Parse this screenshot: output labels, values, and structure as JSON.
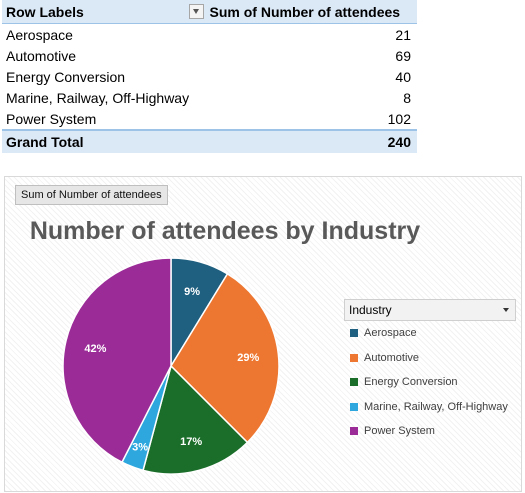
{
  "pivot": {
    "header_row_labels": "Row Labels",
    "header_values": "Sum of Number of attendees",
    "rows": [
      {
        "label": "Aerospace",
        "value": "21"
      },
      {
        "label": "Automotive",
        "value": "69"
      },
      {
        "label": "Energy Conversion",
        "value": "40"
      },
      {
        "label": "Marine, Railway, Off-Highway",
        "value": "8"
      },
      {
        "label": "Power System",
        "value": "102"
      }
    ],
    "total_label": "Grand Total",
    "total_value": "240"
  },
  "chart": {
    "field_button": "Sum of Number of attendees",
    "legend_field": "Industry"
  },
  "chart_data": {
    "type": "pie",
    "title": "Number of attendees by Industry",
    "categories": [
      "Aerospace",
      "Automotive",
      "Energy Conversion",
      "Marine, Railway, Off-Highway",
      "Power System"
    ],
    "values": [
      21,
      69,
      40,
      8,
      102
    ],
    "data_labels": [
      "9%",
      "29%",
      "17%",
      "3%",
      "42%"
    ],
    "colors": [
      "#1f5f7f",
      "#ed7731",
      "#1b6e2a",
      "#2ea7de",
      "#9a2b97"
    ],
    "legend_position": "right"
  }
}
